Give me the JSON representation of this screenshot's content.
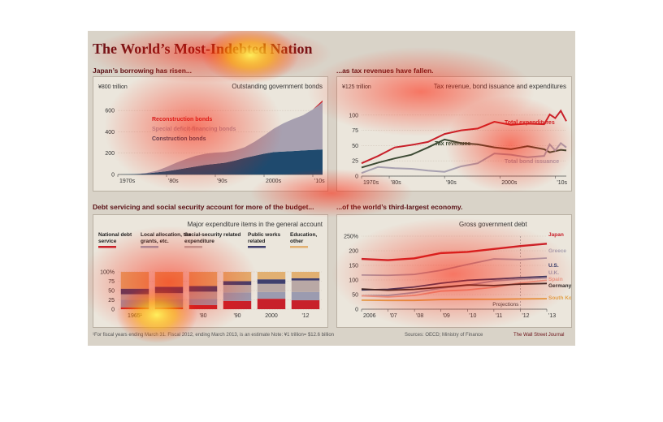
{
  "title": "The World’s Most-Indebted Nation",
  "panels": {
    "p1": {
      "subtitle": "Japan’s borrowing has risen...",
      "heading": "Outstanding government bonds",
      "unit_label": "¥800 trillion"
    },
    "p2": {
      "subtitle": "...as tax revenues have fallen.",
      "heading": "Tax revenue, bond issuance and expenditures",
      "unit_label": "¥125 trillion"
    },
    "p3": {
      "subtitle": "Debt servicing and social security account for more of the budget...",
      "heading": "Major expenditure items in the general account"
    },
    "p4": {
      "subtitle": "...of the world’s third-largest economy.",
      "heading": "Gross government debt"
    }
  },
  "footer": {
    "note": "¹For fiscal years ending March 31. Fiscal 2012, ending March 2013, is an estimate   Note: ¥1 trillion= $12.6 billion",
    "sources": "Sources: OECD; Ministry of Finance",
    "credit": "The Wall Street Journal"
  },
  "colors": {
    "background": "#d9d3c8",
    "panel": "#ebe6dc",
    "title": "#6b1218",
    "reconstruction": "#c8202a",
    "deficit": "#a7a0b0",
    "construction": "#1f4a6e",
    "expenditures": "#c8202a",
    "tax": "#3c4a34",
    "bond": "#a7a0b0"
  },
  "chart_data": [
    {
      "id": "p1",
      "type": "area",
      "x": [
        1970,
        1972,
        1974,
        1976,
        1978,
        1980,
        1982,
        1984,
        1986,
        1988,
        1990,
        1992,
        1994,
        1996,
        1998,
        2000,
        2002,
        2004,
        2006,
        2008,
        2010,
        2011,
        2012
      ],
      "xticks": [
        {
          "v": 1970,
          "label": "1970s"
        },
        {
          "v": 1980,
          "label": "'80s"
        },
        {
          "v": 1990,
          "label": "'90s"
        },
        {
          "v": 2000,
          "label": "2000s"
        },
        {
          "v": 2010,
          "label": "'10s"
        }
      ],
      "xlim": [
        1970,
        2012
      ],
      "ylim": [
        0,
        700
      ],
      "yticks": [
        0,
        200,
        400,
        600
      ],
      "series": [
        {
          "name": "Construction bonds",
          "color": "#1f4a6e",
          "values": [
            0,
            2,
            5,
            10,
            20,
            30,
            45,
            60,
            75,
            90,
            100,
            110,
            130,
            155,
            175,
            195,
            210,
            215,
            220,
            225,
            230,
            232,
            235
          ]
        },
        {
          "name": "Special deficit-financing bonds",
          "color": "#a7a0b0",
          "values": [
            0,
            0,
            0,
            5,
            15,
            40,
            65,
            85,
            100,
            105,
            105,
            100,
            95,
            100,
            130,
            170,
            220,
            265,
            300,
            330,
            380,
            410,
            445
          ]
        },
        {
          "name": "Reconstruction bonds",
          "color": "#c8202a",
          "values": [
            0,
            0,
            0,
            0,
            0,
            0,
            0,
            0,
            0,
            0,
            0,
            0,
            0,
            0,
            0,
            0,
            0,
            0,
            0,
            0,
            0,
            10,
            15
          ]
        }
      ]
    },
    {
      "id": "p2",
      "type": "line",
      "x": [
        1975,
        1978,
        1981,
        1984,
        1987,
        1990,
        1993,
        1996,
        1999,
        2002,
        2005,
        2008,
        2009,
        2010,
        2011,
        2012
      ],
      "xticks": [
        {
          "v": 1975,
          "label": "1970s"
        },
        {
          "v": 1980,
          "label": "'80s"
        },
        {
          "v": 1990,
          "label": "'90s"
        },
        {
          "v": 2000,
          "label": "2000s"
        },
        {
          "v": 2010,
          "label": "'10s"
        }
      ],
      "xlim": [
        1975,
        2012
      ],
      "ylim": [
        0,
        125
      ],
      "yticks": [
        0,
        25,
        50,
        75,
        100
      ],
      "series": [
        {
          "name": "Total expenditures",
          "color": "#c8202a",
          "values": [
            21,
            33,
            47,
            51,
            56,
            69,
            75,
            78,
            89,
            84,
            86,
            85,
            101,
            95,
            107,
            90
          ]
        },
        {
          "name": "Tax revenues",
          "color": "#3c4a34",
          "values": [
            14,
            22,
            29,
            35,
            47,
            60,
            54,
            52,
            47,
            44,
            49,
            44,
            39,
            41,
            43,
            42
          ]
        },
        {
          "name": "Total bond issuance",
          "color": "#a7a0b0",
          "values": [
            5,
            15,
            13,
            12,
            9,
            7,
            16,
            21,
            37,
            35,
            31,
            33,
            52,
            42,
            54,
            47
          ]
        }
      ]
    },
    {
      "id": "p3",
      "type": "bar",
      "categories": [
        "1965",
        "1970",
        "'80",
        "'90",
        "2000",
        "'12"
      ],
      "category_labels": [
        "1965¹",
        "",
        "'80",
        "'90",
        "2000",
        "'12"
      ],
      "ylim": [
        0,
        100
      ],
      "yticks": [
        0,
        25,
        50,
        75,
        100
      ],
      "series": [
        {
          "name": "Education, other",
          "color": "#e2b071",
          "values": [
            45,
            40,
            38,
            25,
            20,
            17
          ]
        },
        {
          "name": "Public works related",
          "color": "#3f3f6e",
          "values": [
            15,
            17,
            15,
            10,
            12,
            6
          ]
        },
        {
          "name": "Social-security related expenditure",
          "color": "#b9a8a5",
          "values": [
            15,
            16,
            19,
            20,
            22,
            31
          ]
        },
        {
          "name": "Local allocation, tax grants, etc.",
          "color": "#9b9bb0",
          "values": [
            20,
            22,
            17,
            23,
            18,
            22
          ]
        },
        {
          "name": "National debt service",
          "color": "#c8202a",
          "values": [
            5,
            5,
            11,
            22,
            28,
            24
          ]
        }
      ]
    },
    {
      "id": "p4",
      "type": "line",
      "x": [
        2006,
        2007,
        2008,
        2009,
        2010,
        2011,
        2012,
        2013
      ],
      "xticks": [
        {
          "v": 2006,
          "label": "2006"
        },
        {
          "v": 2007,
          "label": "'07"
        },
        {
          "v": 2008,
          "label": "'08"
        },
        {
          "v": 2009,
          "label": "'09"
        },
        {
          "v": 2010,
          "label": "'10"
        },
        {
          "v": 2011,
          "label": "'11"
        },
        {
          "v": 2012,
          "label": "'12"
        },
        {
          "v": 2013,
          "label": "'13"
        }
      ],
      "xlim": [
        2006,
        2013
      ],
      "ylim": [
        0,
        250
      ],
      "yticks": [
        0,
        50,
        100,
        150,
        200,
        250
      ],
      "ytick_labels": [
        "0",
        "50",
        "100",
        "150",
        "200",
        "250%"
      ],
      "annotation": "Projections",
      "series": [
        {
          "name": "Japan",
          "color": "#c8202a",
          "values": [
            172,
            168,
            174,
            192,
            196,
            206,
            216,
            224
          ]
        },
        {
          "name": "Greece",
          "color": "#a7a0b0",
          "values": [
            117,
            116,
            119,
            133,
            153,
            172,
            170,
            175
          ]
        },
        {
          "name": "U.S.",
          "color": "#1f3a6e",
          "values": [
            66,
            68,
            76,
            89,
            99,
            103,
            108,
            112
          ]
        },
        {
          "name": "U.K.",
          "color": "#9b9bb0",
          "values": [
            46,
            47,
            57,
            72,
            82,
            97,
            103,
            107
          ]
        },
        {
          "name": "Spain",
          "color": "#e6a08f",
          "values": [
            46,
            42,
            47,
            62,
            66,
            75,
            90,
            99
          ]
        },
        {
          "name": "Germany",
          "color": "#2a2a2a",
          "values": [
            69,
            65,
            68,
            75,
            83,
            81,
            86,
            88
          ]
        },
        {
          "name": "South Korea",
          "color": "#e2a24a",
          "values": [
            31,
            30,
            30,
            33,
            34,
            34,
            35,
            36
          ]
        }
      ]
    }
  ]
}
